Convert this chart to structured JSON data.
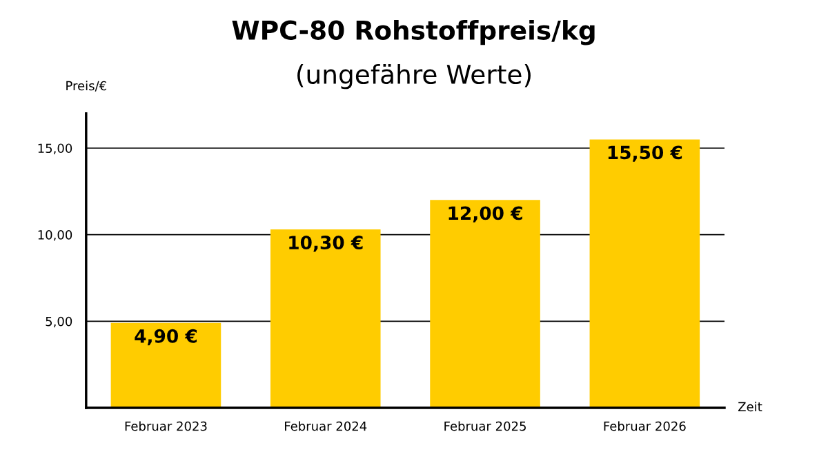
{
  "chart_data": {
    "type": "bar",
    "title": "WPC-80 Rohstoffpreis/kg",
    "subtitle": "(ungefähre Werte)",
    "xlabel": "Zeit",
    "ylabel": "Preis/€",
    "categories": [
      "Februar 2023",
      "Februar 2024",
      "Februar 2025",
      "Februar 2026"
    ],
    "values": [
      4.9,
      10.3,
      12.0,
      15.5
    ],
    "value_labels": [
      "4,90 €",
      "10,30 €",
      "12,00 €",
      "15,50 €"
    ],
    "color": "#ffcc00",
    "ylim": [
      0,
      17
    ],
    "yticks": [
      {
        "value": 5,
        "label": "5,00"
      },
      {
        "value": 10,
        "label": "10,00"
      },
      {
        "value": 15,
        "label": "15,00"
      }
    ],
    "grid": "y"
  }
}
